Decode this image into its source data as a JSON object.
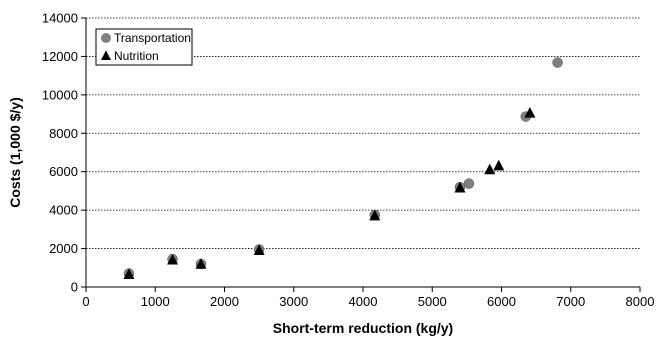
{
  "chart_data": {
    "type": "scatter",
    "title": "",
    "xlabel": "Short-term reduction (kg/y)",
    "ylabel": "Costs (1,000 $/y)",
    "xlim": [
      0,
      8000
    ],
    "ylim": [
      0,
      14000
    ],
    "xticks": [
      0,
      1000,
      2000,
      3000,
      4000,
      5000,
      6000,
      7000,
      8000
    ],
    "yticks": [
      0,
      2000,
      4000,
      6000,
      8000,
      10000,
      12000,
      14000
    ],
    "grid": "horizontal dotted",
    "legend_position": "top-left",
    "series": [
      {
        "name": "Transportation",
        "marker": "circle",
        "color": "#808080",
        "points": [
          [
            620,
            700
          ],
          [
            1250,
            1450
          ],
          [
            1660,
            1200
          ],
          [
            2500,
            1950
          ],
          [
            4170,
            3750
          ],
          [
            5400,
            5200
          ],
          [
            5530,
            5380
          ],
          [
            6350,
            8870
          ],
          [
            6810,
            11680
          ]
        ]
      },
      {
        "name": "Nutrition",
        "marker": "triangle",
        "color": "#000000",
        "points": [
          [
            620,
            650
          ],
          [
            1250,
            1400
          ],
          [
            1660,
            1180
          ],
          [
            2500,
            1900
          ],
          [
            4170,
            3700
          ],
          [
            5400,
            5150
          ],
          [
            5830,
            6100
          ],
          [
            5960,
            6300
          ],
          [
            6410,
            9050
          ]
        ]
      }
    ]
  }
}
